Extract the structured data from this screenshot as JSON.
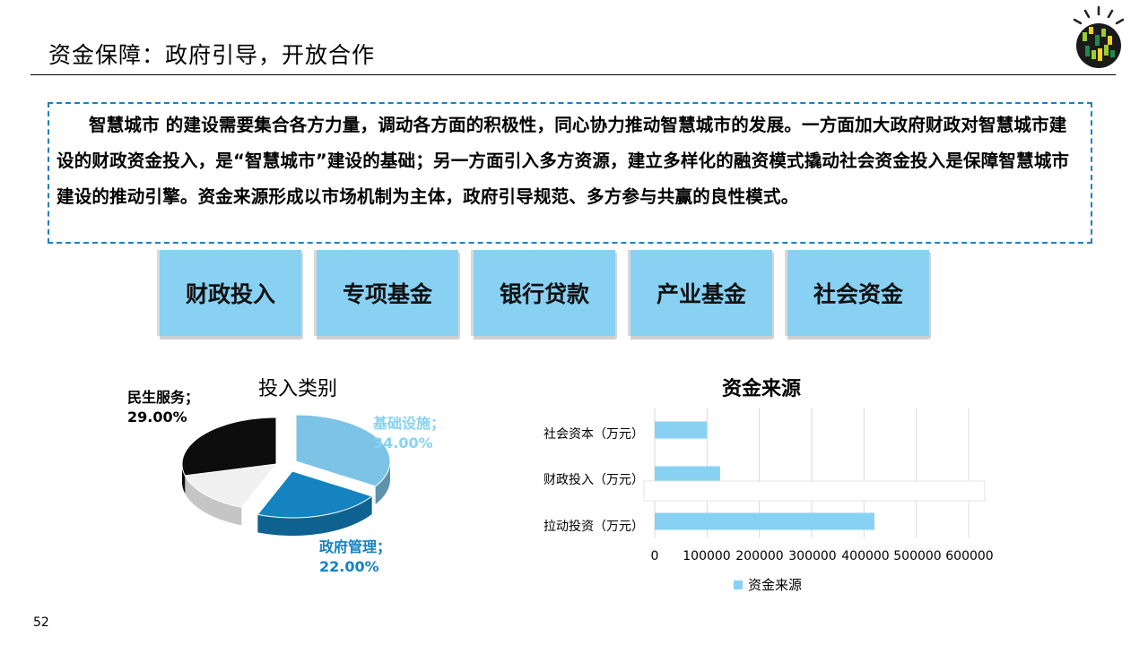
{
  "slide": {
    "title": "资金保障：政府引导，开放合作",
    "page_number": "52",
    "paragraph": "智慧城市 的建设需要集合各方力量，调动各方面的积极性，同心协力推动智慧城市的发展。一方面加大政府财政对智慧城市建设的财政资金投入，是“智慧城市”建设的基础；另一方面引入多方资源，建立多样化的融资模式撬动社会资金投入是保障智慧城市建设的推动引擎。资金来源形成以市场机制为主体，政府引导规范、多方参与共赢的良性模式。",
    "funding_types": [
      "财政投入",
      "专项基金",
      "银行贷款",
      "产业基金",
      "社会资金"
    ]
  },
  "colors": {
    "accent_light": "#88d1f3",
    "accent_pie_light": "#7cc3e6",
    "accent_pie_dark": "#1483c0",
    "pie_black": "#0d0d0d",
    "pie_white": "#f0f0f0",
    "dash_border": "#1f7fbf"
  },
  "chart_data": [
    {
      "type": "pie",
      "title": "投入类别",
      "slices": [
        {
          "name": "基础设施",
          "value": 0.34,
          "label": "基础设施；",
          "value_label": "34.00%",
          "color": "#7cc3e6"
        },
        {
          "name": "政府管理",
          "value": 0.22,
          "label": "政府管理；",
          "value_label": "22.00%",
          "color": "#1483c0"
        },
        {
          "name": "其他",
          "value": 0.15,
          "label": "",
          "value_label": "",
          "color": "#f0f0f0"
        },
        {
          "name": "民生服务",
          "value": 0.29,
          "label": "民生服务；",
          "value_label": "29.00%",
          "color": "#0d0d0d"
        }
      ]
    },
    {
      "type": "bar",
      "orientation": "horizontal",
      "title": "资金来源",
      "categories": [
        "社会资本（万元）",
        "财政投入（万元）",
        "拉动投资（万元）"
      ],
      "series": [
        {
          "name": "资金来源",
          "values": [
            100000,
            125000,
            420000
          ]
        }
      ],
      "xlim": [
        0,
        600000
      ],
      "xticks": [
        "0",
        "100000",
        "200000",
        "300000",
        "400000",
        "500000",
        "600000"
      ],
      "grid": true,
      "legend": "bottom"
    }
  ]
}
